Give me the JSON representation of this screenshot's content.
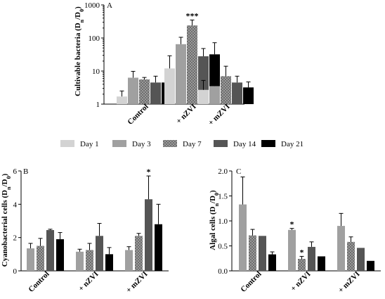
{
  "colors": {
    "day1": "#d3d3d3",
    "day3": "#a0a0a0",
    "day7": "#8a8a8a",
    "day14": "#555555",
    "day21": "#000000",
    "day7_pattern": "checkered"
  },
  "legend": [
    "Day 1",
    "Day 3",
    "Day 7",
    "Day 14",
    "Day 21"
  ],
  "chart_data": [
    {
      "panel": "A",
      "type": "bar",
      "title": "",
      "ylabel": "Cultivable bacteria (Dn/D0)",
      "yscale": "log",
      "ylim": [
        1,
        1000
      ],
      "yticks": [
        "1",
        "10",
        "100",
        "1000"
      ],
      "categories": [
        "Control",
        "+ nZVI",
        "+ mZVI"
      ],
      "series": [
        {
          "name": "Day 1",
          "values": [
            1.7,
            12,
            2.7
          ],
          "errors": [
            0.8,
            17,
            2.5
          ]
        },
        {
          "name": "Day 3",
          "values": [
            6.3,
            65,
            3.5
          ],
          "errors": [
            3.5,
            40,
            1.0
          ]
        },
        {
          "name": "Day 7",
          "values": [
            5.6,
            240,
            7.0
          ],
          "errors": [
            0.8,
            110,
            7.0
          ]
        },
        {
          "name": "Day 14",
          "values": [
            4.5,
            28,
            4.5
          ],
          "errors": [
            2.5,
            20,
            2.5
          ]
        },
        {
          "name": "Day 21",
          "values": [
            4.5,
            32,
            3.2
          ],
          "errors": [
            2.0,
            40,
            1.5
          ]
        }
      ],
      "annotations": [
        {
          "text": "***",
          "category": "+ nZVI",
          "series": "Day 7"
        }
      ]
    },
    {
      "panel": "B",
      "type": "bar",
      "title": "",
      "ylabel": "Cyanobacterial cells (Dn/D0)",
      "yscale": "linear",
      "ylim": [
        0,
        6
      ],
      "yticks": [
        "0",
        "2",
        "4",
        "6"
      ],
      "categories": [
        "Control",
        "+ nZVI",
        "+ mZVI"
      ],
      "series": [
        {
          "name": "Day 1",
          "values": [
            null,
            null,
            null
          ],
          "errors": [
            null,
            null,
            null
          ]
        },
        {
          "name": "Day 3",
          "values": [
            1.35,
            1.15,
            1.25
          ],
          "errors": [
            0.3,
            0.15,
            0.2
          ]
        },
        {
          "name": "Day 7",
          "values": [
            1.5,
            1.25,
            2.1
          ],
          "errors": [
            0.45,
            0.4,
            0.15
          ]
        },
        {
          "name": "Day 14",
          "values": [
            2.45,
            2.1,
            4.3
          ],
          "errors": [
            0.05,
            0.75,
            1.4
          ]
        },
        {
          "name": "Day 21",
          "values": [
            1.9,
            1.0,
            2.8
          ],
          "errors": [
            0.4,
            0.4,
            1.2
          ]
        }
      ],
      "annotations": [
        {
          "text": "*",
          "category": "+ mZVI",
          "series": "Day 14"
        }
      ]
    },
    {
      "panel": "C",
      "type": "bar",
      "title": "",
      "ylabel": "Algal cells (Dn/D0)",
      "yscale": "linear",
      "ylim": [
        0,
        2.0
      ],
      "yticks": [
        "0.0",
        "0.5",
        "1.0",
        "1.5",
        "2.0"
      ],
      "categories": [
        "Control",
        "+ nZVI",
        "+ mZVI"
      ],
      "series": [
        {
          "name": "Day 1",
          "values": [
            null,
            null,
            null
          ],
          "errors": [
            null,
            null,
            null
          ]
        },
        {
          "name": "Day 3",
          "values": [
            1.33,
            0.82,
            0.9
          ],
          "errors": [
            0.55,
            0.03,
            0.25
          ]
        },
        {
          "name": "Day 7",
          "values": [
            0.71,
            0.24,
            0.58
          ],
          "errors": [
            0.12,
            0.05,
            0.1
          ]
        },
        {
          "name": "Day 14",
          "values": [
            0.7,
            0.48,
            0.46
          ],
          "errors": [
            0.0,
            0.1,
            0.0
          ]
        },
        {
          "name": "Day 21",
          "values": [
            0.33,
            0.29,
            0.2
          ],
          "errors": [
            0.05,
            0.0,
            0.0
          ]
        }
      ],
      "annotations": [
        {
          "text": "*",
          "category": "+ nZVI",
          "series": "Day 3"
        },
        {
          "text": "*",
          "category": "+ nZVI",
          "series": "Day 7"
        }
      ]
    }
  ]
}
